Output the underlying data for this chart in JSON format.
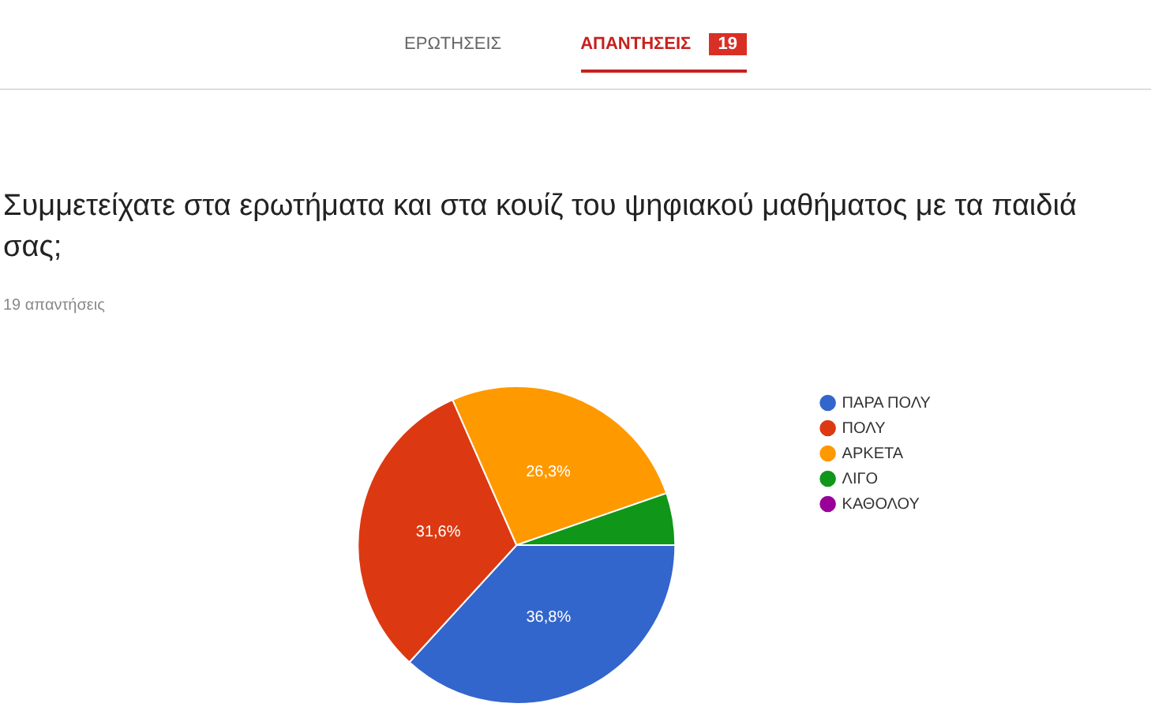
{
  "chart_data": {
    "type": "pie",
    "title": "Συμμετείχατε στα ερωτήματα και στα κουίζ του ψηφιακού μαθήματος με τα παιδιά σας;",
    "subtitle": "19 απαντήσεις",
    "annotations": [
      "ΕΡΩΤΗΣΕΙΣ",
      "ΑΠΑΝΤΗΣΕΙΣ",
      "19"
    ],
    "categories": [
      "ΠΑΡΑ ΠΟΛΥ",
      "ΠΟΛΥ",
      "ΑΡΚΕΤΑ",
      "ΛΙΓΟ",
      "ΚΑΘΟΛΟΥ"
    ],
    "values": [
      36.8,
      31.6,
      26.3,
      5.3,
      0
    ],
    "colors": [
      "#3366cc",
      "#dc3912",
      "#ff9900",
      "#109618",
      "#990099"
    ],
    "value_labels": [
      "36,8%",
      "31,6%",
      "26,3%",
      null,
      null
    ],
    "legend": "right"
  }
}
